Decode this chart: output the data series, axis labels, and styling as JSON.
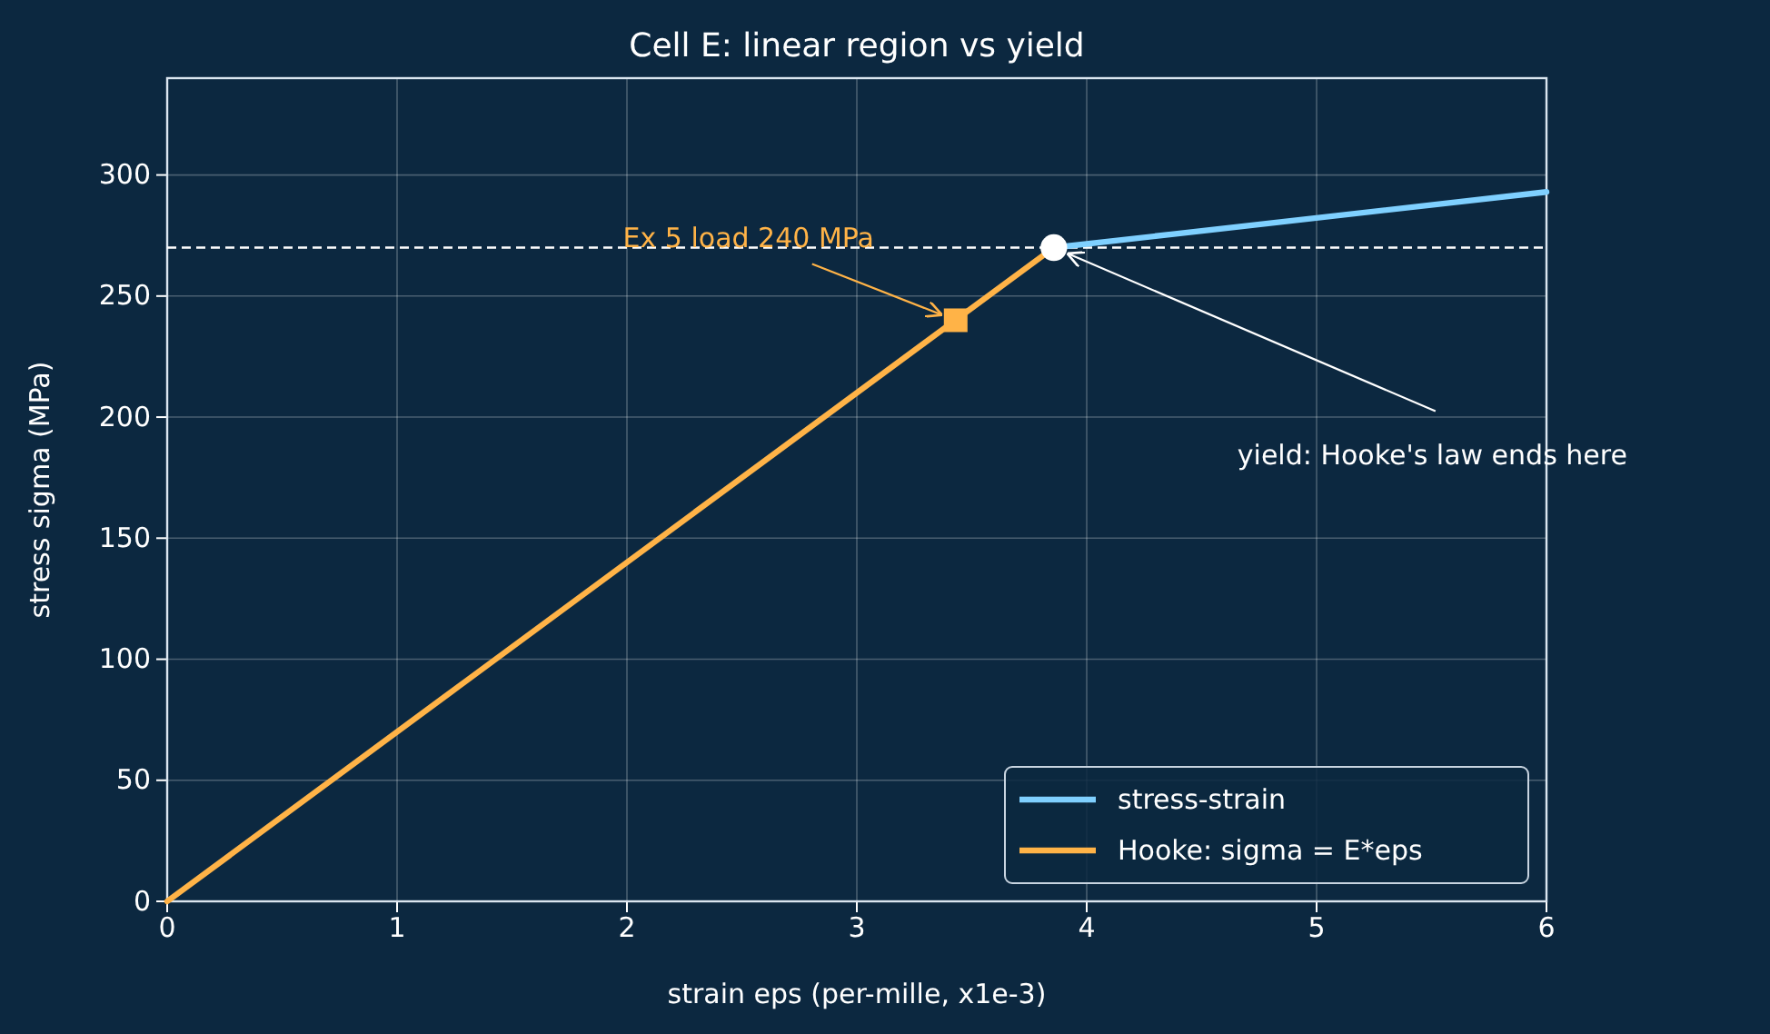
{
  "chart_data": {
    "type": "line",
    "title": "Cell E: linear region vs yield",
    "xlabel": "strain eps (per-mille, x1e-3)",
    "ylabel": "stress sigma (MPa)",
    "xlim": [
      0,
      6
    ],
    "ylim": [
      0,
      340
    ],
    "xticks": [
      0,
      1,
      2,
      3,
      4,
      5,
      6
    ],
    "yticks": [
      0,
      50,
      100,
      150,
      200,
      250,
      300
    ],
    "grid": true,
    "legend": "bottom right",
    "series": [
      {
        "name": "stress-strain",
        "color": "#7fd0ff",
        "marker": "none",
        "x": [
          3.857,
          6
        ],
        "values": [
          270,
          293
        ]
      },
      {
        "name": "Hooke: sigma = E*eps",
        "color": "#ffb347",
        "marker": "none",
        "x": [
          0,
          3.857
        ],
        "values": [
          0,
          270
        ]
      },
      {
        "color": "#ffb347",
        "type": "scatter",
        "marker": "square",
        "x": [
          3.43
        ],
        "values": [
          240
        ]
      },
      {
        "color": "#ffffff",
        "type": "scatter",
        "marker": "circle",
        "x": [
          3.857
        ],
        "values": [
          270
        ]
      }
    ],
    "ref_lines": [
      {
        "axis": "y",
        "value": 270,
        "color": "#ffffff",
        "line_style": "dashed"
      }
    ],
    "annotations": [
      {
        "text": "Ex 5 load 240 MPa",
        "x": 3.43,
        "y": 240
      },
      {
        "text": "yield: Hooke's law ends here",
        "x": 3.857,
        "y": 270
      }
    ]
  }
}
